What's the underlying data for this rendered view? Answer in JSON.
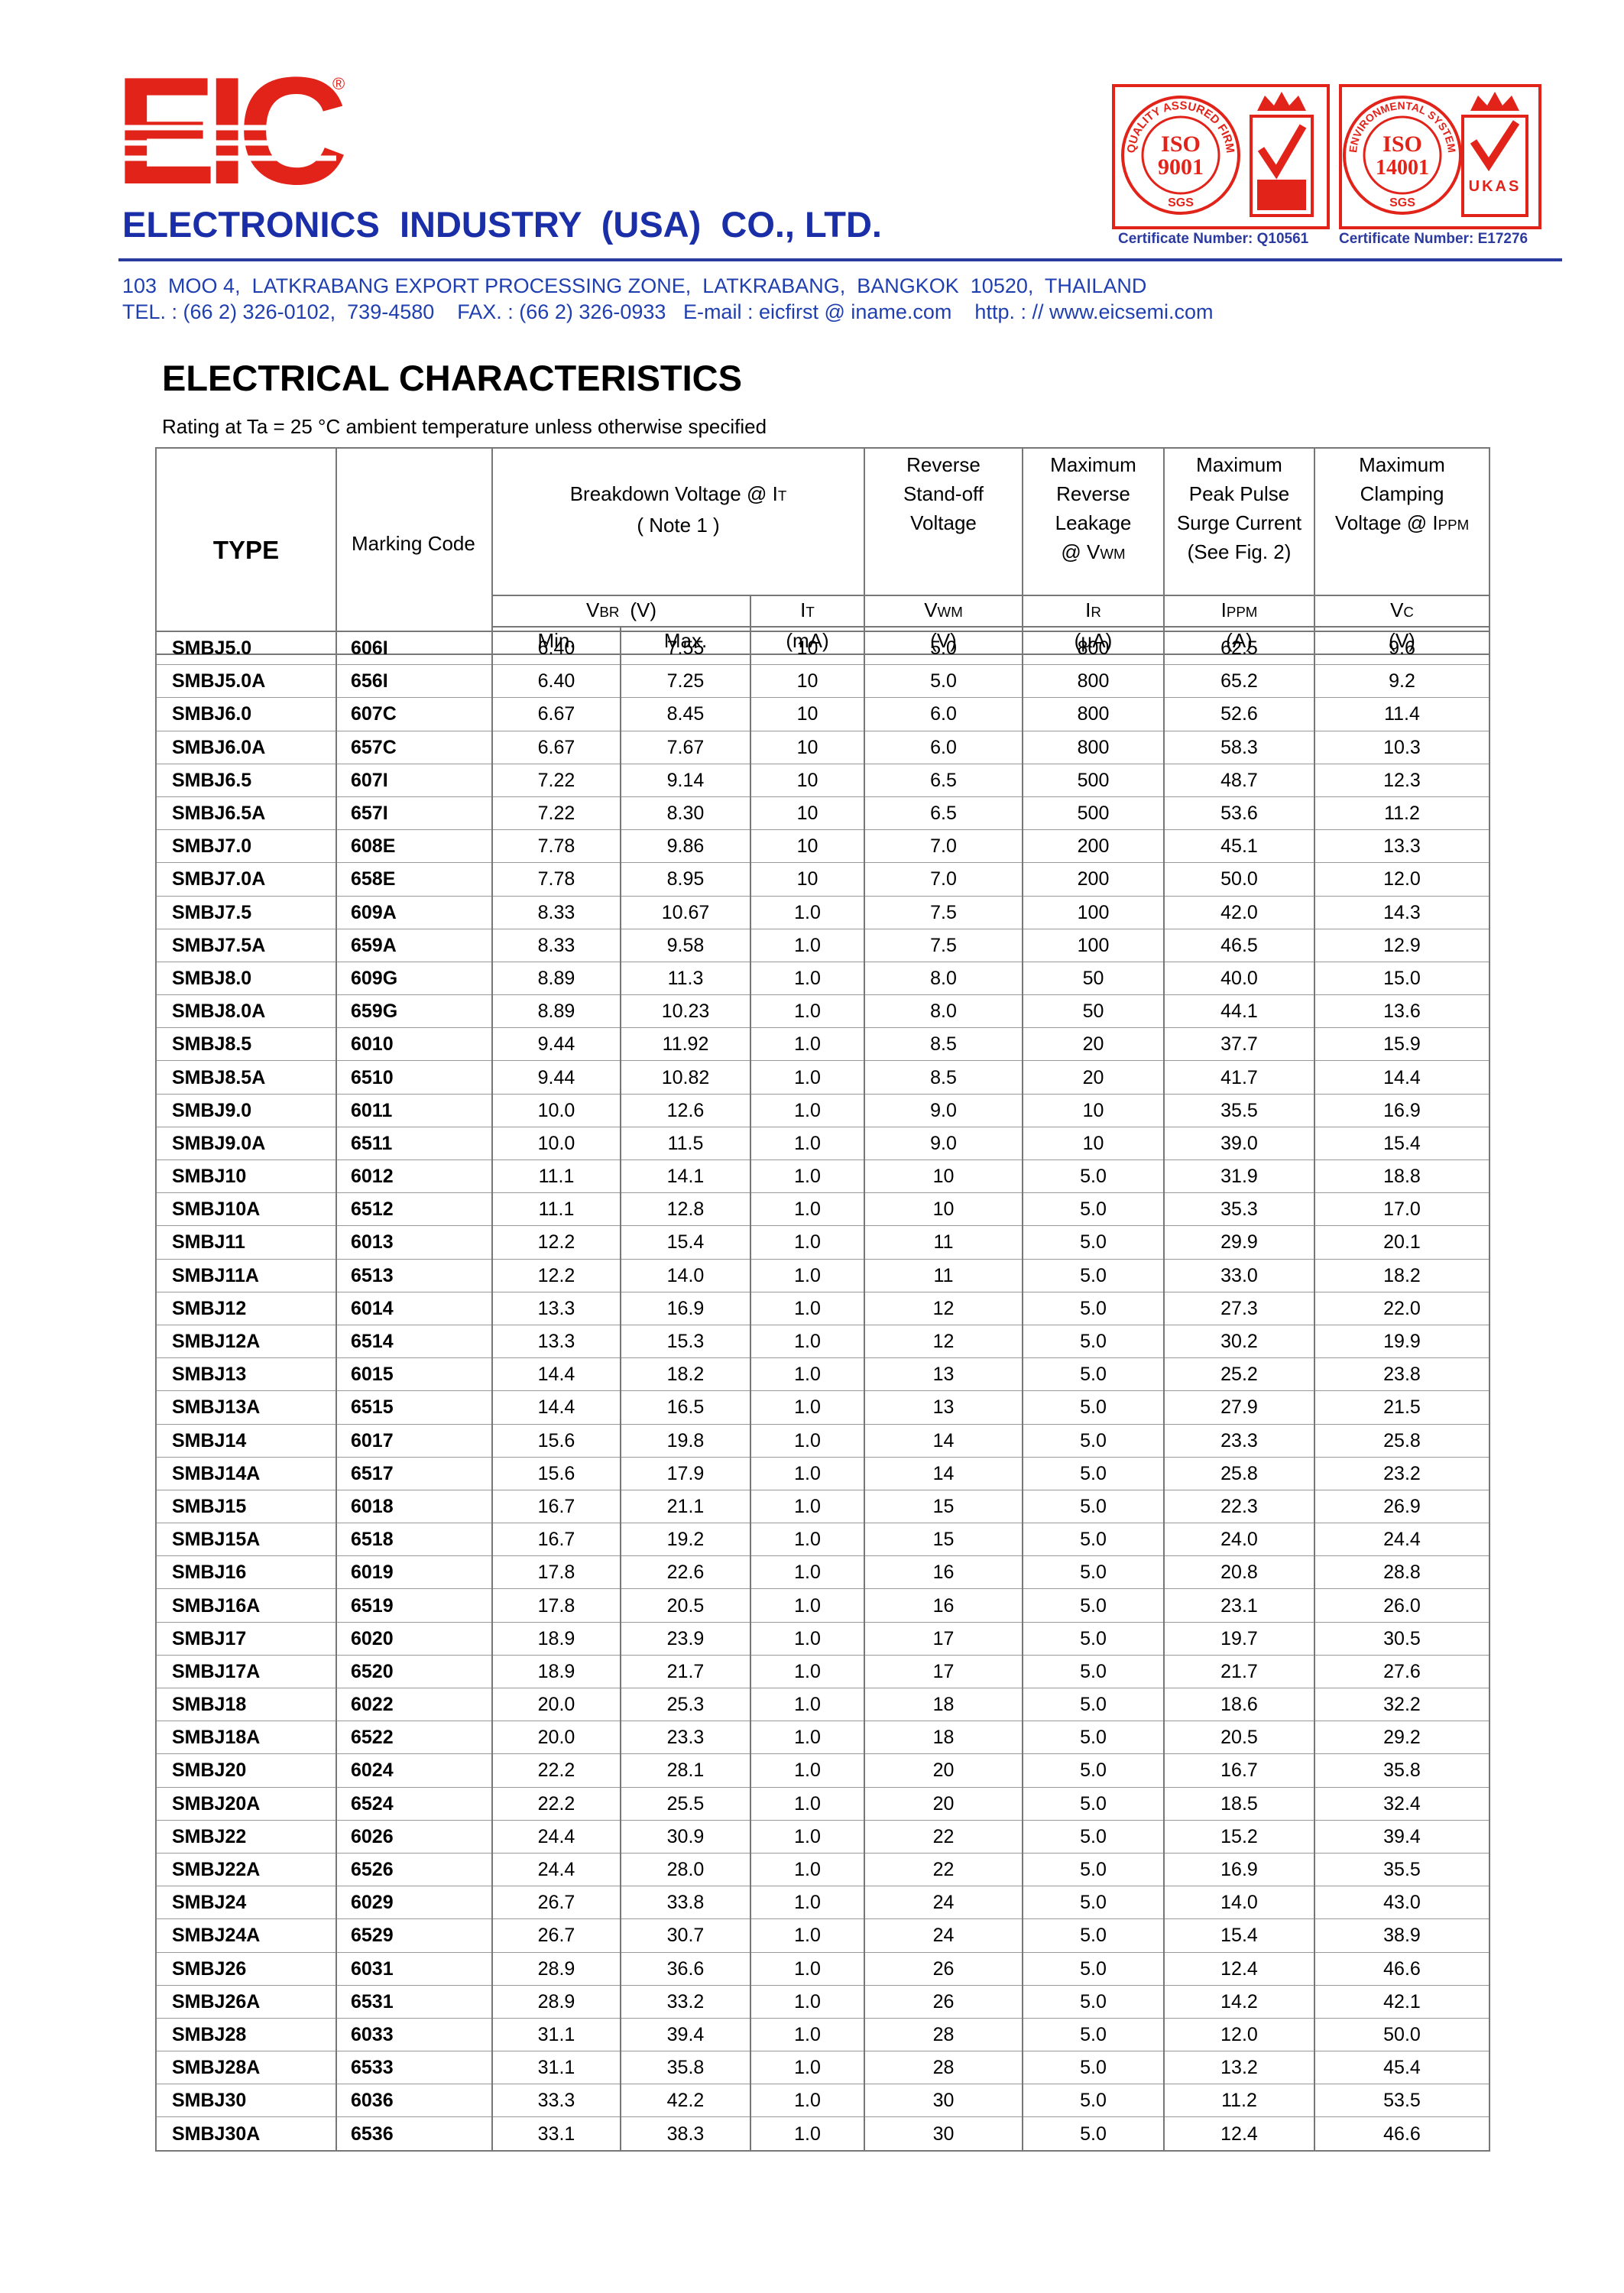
{
  "header": {
    "logo": "EIC",
    "registered": "®",
    "company": "ELECTRONICS  INDUSTRY  (USA)  CO., LTD.",
    "certificates": [
      {
        "ring": "QUALITY ASSURED FIRM",
        "standard": "ISO",
        "number": "9001",
        "body": "SGS",
        "certificate": "Certificate Number: Q10561"
      },
      {
        "ring": "ENVIRONMENTAL SYSTEM",
        "standard": "ISO",
        "number": "14001",
        "body": "SGS",
        "badge": "UKAS",
        "certificate": "Certificate Number: E17276"
      }
    ],
    "address": "103  MOO 4,  LATKRABANG EXPORT PROCESSING ZONE,  LATKRABANG,  BANGKOK  10520,  THAILAND",
    "contact": "TEL. : (66 2) 326-0102,  739-4580    FAX. : (66 2) 326-0933   E-mail : eicfirst @ iname.com    http. : // www.eicsemi.com"
  },
  "title": "ELECTRICAL CHARACTERISTICS",
  "subtitle": "Rating at Ta = 25 °C ambient temperature unless otherwise specified",
  "table": {
    "type_label": "TYPE",
    "marking_label": "Marking Code",
    "breakdown_label": [
      {
        "text": "Breakdown Voltage @  I",
        "sub": "T"
      },
      "( Note 1 )"
    ],
    "standoff_label": [
      "Reverse",
      "Stand-off",
      "Voltage"
    ],
    "leakage_label": [
      "Maximum",
      "Reverse",
      "Leakage",
      {
        "text": "@ V",
        "sub": "WM"
      }
    ],
    "surge_label": [
      "Maximum",
      "Peak Pulse",
      "Surge Current",
      "(See Fig. 2)"
    ],
    "clamping_label": [
      "Maximum",
      "Clamping",
      {
        "text": "Voltage @ I",
        "sub": "PPM"
      }
    ],
    "symbols": [
      {
        "text": "V",
        "sub": "BR",
        "unit": "(V)"
      },
      {
        "text": "I",
        "sub": "T"
      },
      {
        "text": "V",
        "sub": "WM"
      },
      {
        "text": "I",
        "sub": "R"
      },
      {
        "text": "I",
        "sub": "PPM"
      },
      {
        "text": "V",
        "sub": "C"
      }
    ],
    "units": [
      "Min.",
      "Max.",
      "(mA)",
      "(V)",
      "(µA)",
      "(A)",
      "(V)"
    ],
    "rows": [
      [
        "SMBJ5.0",
        "606I",
        "6.40",
        "7.55",
        "10",
        "5.0",
        "800",
        "62.5",
        "9.6"
      ],
      [
        "SMBJ5.0A",
        "656I",
        "6.40",
        "7.25",
        "10",
        "5.0",
        "800",
        "65.2",
        "9.2"
      ],
      [
        "SMBJ6.0",
        "607C",
        "6.67",
        "8.45",
        "10",
        "6.0",
        "800",
        "52.6",
        "11.4"
      ],
      [
        "SMBJ6.0A",
        "657C",
        "6.67",
        "7.67",
        "10",
        "6.0",
        "800",
        "58.3",
        "10.3"
      ],
      [
        "SMBJ6.5",
        "607I",
        "7.22",
        "9.14",
        "10",
        "6.5",
        "500",
        "48.7",
        "12.3"
      ],
      [
        "SMBJ6.5A",
        "657I",
        "7.22",
        "8.30",
        "10",
        "6.5",
        "500",
        "53.6",
        "11.2"
      ],
      [
        "SMBJ7.0",
        "608E",
        "7.78",
        "9.86",
        "10",
        "7.0",
        "200",
        "45.1",
        "13.3"
      ],
      [
        "SMBJ7.0A",
        "658E",
        "7.78",
        "8.95",
        "10",
        "7.0",
        "200",
        "50.0",
        "12.0"
      ],
      [
        "SMBJ7.5",
        "609A",
        "8.33",
        "10.67",
        "1.0",
        "7.5",
        "100",
        "42.0",
        "14.3"
      ],
      [
        "SMBJ7.5A",
        "659A",
        "8.33",
        "9.58",
        "1.0",
        "7.5",
        "100",
        "46.5",
        "12.9"
      ],
      [
        "SMBJ8.0",
        "609G",
        "8.89",
        "11.3",
        "1.0",
        "8.0",
        "50",
        "40.0",
        "15.0"
      ],
      [
        "SMBJ8.0A",
        "659G",
        "8.89",
        "10.23",
        "1.0",
        "8.0",
        "50",
        "44.1",
        "13.6"
      ],
      [
        "SMBJ8.5",
        "6010",
        "9.44",
        "11.92",
        "1.0",
        "8.5",
        "20",
        "37.7",
        "15.9"
      ],
      [
        "SMBJ8.5A",
        "6510",
        "9.44",
        "10.82",
        "1.0",
        "8.5",
        "20",
        "41.7",
        "14.4"
      ],
      [
        "SMBJ9.0",
        "6011",
        "10.0",
        "12.6",
        "1.0",
        "9.0",
        "10",
        "35.5",
        "16.9"
      ],
      [
        "SMBJ9.0A",
        "6511",
        "10.0",
        "11.5",
        "1.0",
        "9.0",
        "10",
        "39.0",
        "15.4"
      ],
      [
        "SMBJ10",
        "6012",
        "11.1",
        "14.1",
        "1.0",
        "10",
        "5.0",
        "31.9",
        "18.8"
      ],
      [
        "SMBJ10A",
        "6512",
        "11.1",
        "12.8",
        "1.0",
        "10",
        "5.0",
        "35.3",
        "17.0"
      ],
      [
        "SMBJ11",
        "6013",
        "12.2",
        "15.4",
        "1.0",
        "11",
        "5.0",
        "29.9",
        "20.1"
      ],
      [
        "SMBJ11A",
        "6513",
        "12.2",
        "14.0",
        "1.0",
        "11",
        "5.0",
        "33.0",
        "18.2"
      ],
      [
        "SMBJ12",
        "6014",
        "13.3",
        "16.9",
        "1.0",
        "12",
        "5.0",
        "27.3",
        "22.0"
      ],
      [
        "SMBJ12A",
        "6514",
        "13.3",
        "15.3",
        "1.0",
        "12",
        "5.0",
        "30.2",
        "19.9"
      ],
      [
        "SMBJ13",
        "6015",
        "14.4",
        "18.2",
        "1.0",
        "13",
        "5.0",
        "25.2",
        "23.8"
      ],
      [
        "SMBJ13A",
        "6515",
        "14.4",
        "16.5",
        "1.0",
        "13",
        "5.0",
        "27.9",
        "21.5"
      ],
      [
        "SMBJ14",
        "6017",
        "15.6",
        "19.8",
        "1.0",
        "14",
        "5.0",
        "23.3",
        "25.8"
      ],
      [
        "SMBJ14A",
        "6517",
        "15.6",
        "17.9",
        "1.0",
        "14",
        "5.0",
        "25.8",
        "23.2"
      ],
      [
        "SMBJ15",
        "6018",
        "16.7",
        "21.1",
        "1.0",
        "15",
        "5.0",
        "22.3",
        "26.9"
      ],
      [
        "SMBJ15A",
        "6518",
        "16.7",
        "19.2",
        "1.0",
        "15",
        "5.0",
        "24.0",
        "24.4"
      ],
      [
        "SMBJ16",
        "6019",
        "17.8",
        "22.6",
        "1.0",
        "16",
        "5.0",
        "20.8",
        "28.8"
      ],
      [
        "SMBJ16A",
        "6519",
        "17.8",
        "20.5",
        "1.0",
        "16",
        "5.0",
        "23.1",
        "26.0"
      ],
      [
        "SMBJ17",
        "6020",
        "18.9",
        "23.9",
        "1.0",
        "17",
        "5.0",
        "19.7",
        "30.5"
      ],
      [
        "SMBJ17A",
        "6520",
        "18.9",
        "21.7",
        "1.0",
        "17",
        "5.0",
        "21.7",
        "27.6"
      ],
      [
        "SMBJ18",
        "6022",
        "20.0",
        "25.3",
        "1.0",
        "18",
        "5.0",
        "18.6",
        "32.2"
      ],
      [
        "SMBJ18A",
        "6522",
        "20.0",
        "23.3",
        "1.0",
        "18",
        "5.0",
        "20.5",
        "29.2"
      ],
      [
        "SMBJ20",
        "6024",
        "22.2",
        "28.1",
        "1.0",
        "20",
        "5.0",
        "16.7",
        "35.8"
      ],
      [
        "SMBJ20A",
        "6524",
        "22.2",
        "25.5",
        "1.0",
        "20",
        "5.0",
        "18.5",
        "32.4"
      ],
      [
        "SMBJ22",
        "6026",
        "24.4",
        "30.9",
        "1.0",
        "22",
        "5.0",
        "15.2",
        "39.4"
      ],
      [
        "SMBJ22A",
        "6526",
        "24.4",
        "28.0",
        "1.0",
        "22",
        "5.0",
        "16.9",
        "35.5"
      ],
      [
        "SMBJ24",
        "6029",
        "26.7",
        "33.8",
        "1.0",
        "24",
        "5.0",
        "14.0",
        "43.0"
      ],
      [
        "SMBJ24A",
        "6529",
        "26.7",
        "30.7",
        "1.0",
        "24",
        "5.0",
        "15.4",
        "38.9"
      ],
      [
        "SMBJ26",
        "6031",
        "28.9",
        "36.6",
        "1.0",
        "26",
        "5.0",
        "12.4",
        "46.6"
      ],
      [
        "SMBJ26A",
        "6531",
        "28.9",
        "33.2",
        "1.0",
        "26",
        "5.0",
        "14.2",
        "42.1"
      ],
      [
        "SMBJ28",
        "6033",
        "31.1",
        "39.4",
        "1.0",
        "28",
        "5.0",
        "12.0",
        "50.0"
      ],
      [
        "SMBJ28A",
        "6533",
        "31.1",
        "35.8",
        "1.0",
        "28",
        "5.0",
        "13.2",
        "45.4"
      ],
      [
        "SMBJ30",
        "6036",
        "33.3",
        "42.2",
        "1.0",
        "30",
        "5.0",
        "11.2",
        "53.5"
      ],
      [
        "SMBJ30A",
        "6536",
        "33.1",
        "38.3",
        "1.0",
        "30",
        "5.0",
        "12.4",
        "46.6"
      ]
    ]
  }
}
